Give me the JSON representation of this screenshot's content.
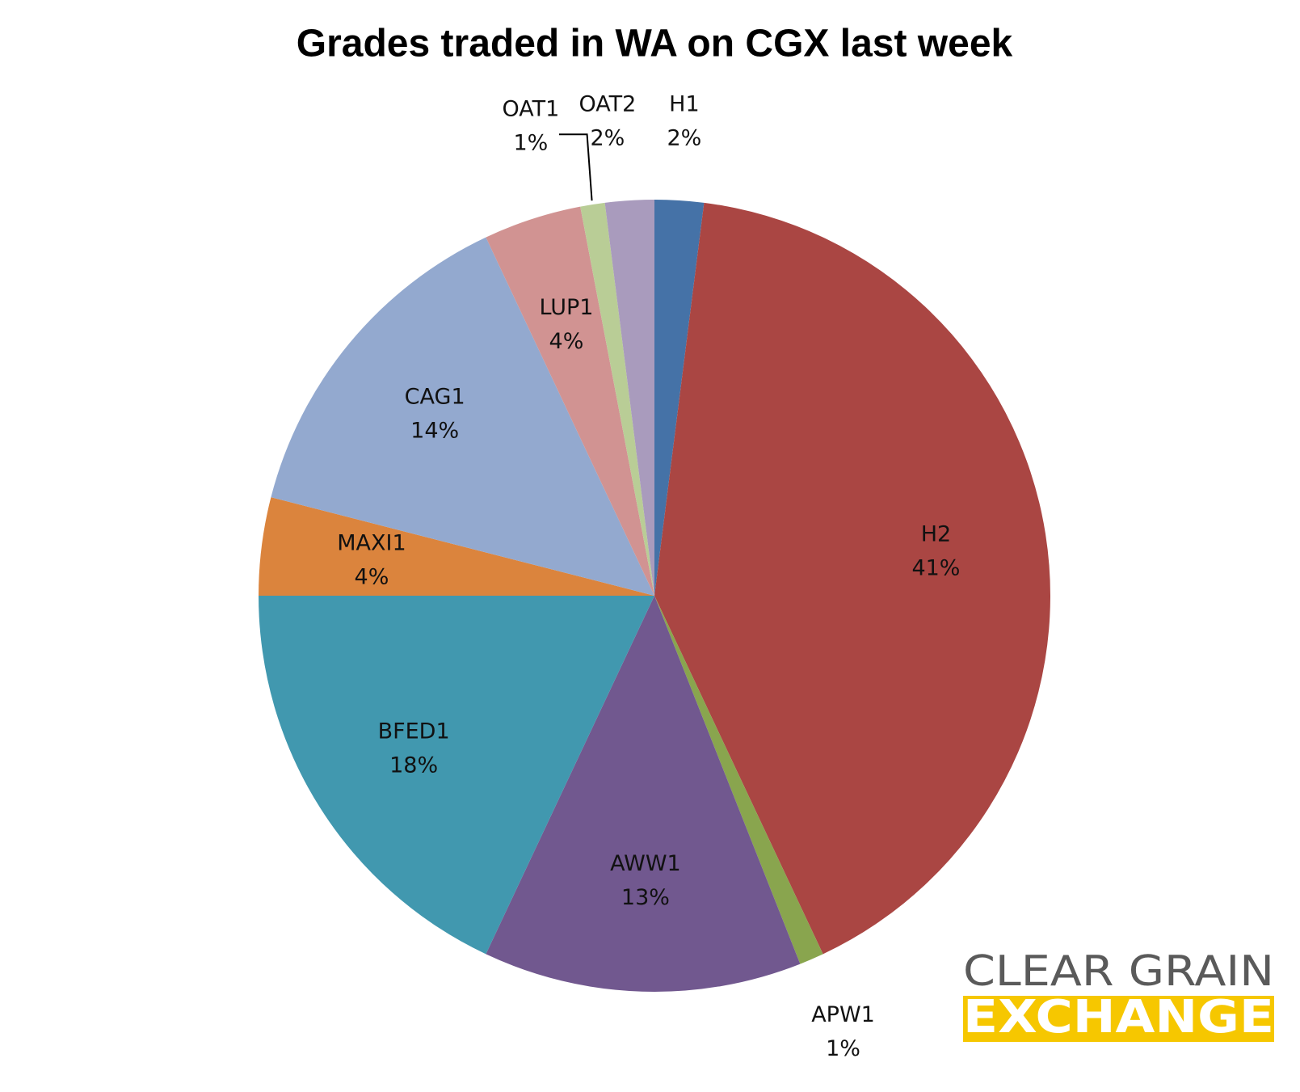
{
  "chart_data": {
    "type": "pie",
    "title": "Grades traded in WA on CGX last week",
    "categories": [
      "H1",
      "H2",
      "APW1",
      "AWW1",
      "BFED1",
      "MAXI1",
      "CAG1",
      "LUP1",
      "OAT1",
      "OAT2"
    ],
    "values": [
      2,
      41,
      1,
      13,
      18,
      4,
      14,
      4,
      1,
      2
    ],
    "value_labels": [
      "2%",
      "41%",
      "1%",
      "13%",
      "18%",
      "4%",
      "14%",
      "4%",
      "1%",
      "2%"
    ],
    "colors": [
      "#4572a7",
      "#aa4643",
      "#89a54e",
      "#71588f",
      "#4198af",
      "#db843d",
      "#93a9cf",
      "#d19392",
      "#b9cd96",
      "#a99bbd"
    ]
  },
  "logo": {
    "line1": "CLEAR GRAIN",
    "line2": "EXCHANGE"
  }
}
